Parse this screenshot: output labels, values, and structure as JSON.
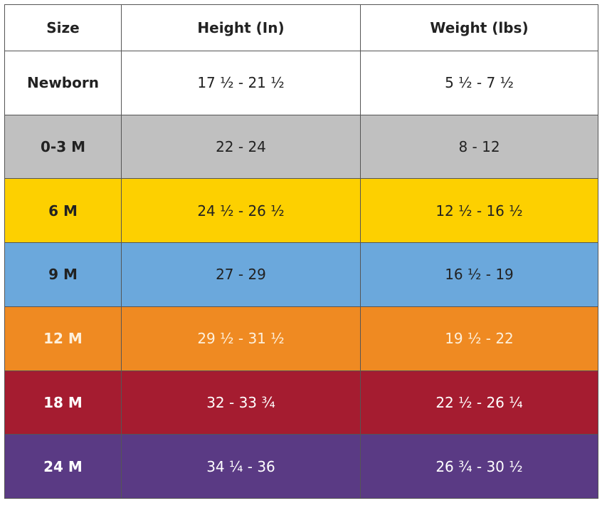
{
  "table": {
    "header": [
      "Size",
      "Height (In)",
      "Weight (lbs)"
    ],
    "rows": [
      [
        "Newborn",
        "17 ½ - 21 ½",
        "5 ½ - 7 ½"
      ],
      [
        "0-3 M",
        "22 - 24",
        "8 - 12"
      ],
      [
        "6 M",
        "24 ½ - 26 ½",
        "12 ½ - 16 ½"
      ],
      [
        "9 M",
        "27 - 29",
        "16 ½ - 19"
      ],
      [
        "12 M",
        "29 ½ - 31 ½",
        "19 ½ - 22"
      ],
      [
        "18 M",
        "32 - 33 ¾",
        "22 ½ - 26 ¼"
      ],
      [
        "24 M",
        "34 ¼ - 36",
        "26 ¾ - 30 ½"
      ]
    ]
  }
}
